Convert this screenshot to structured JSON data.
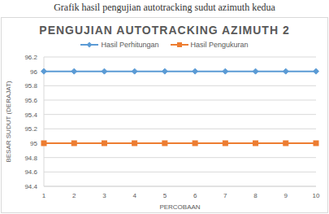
{
  "caption": "Grafik hasil pengujian autotracking sudut azimuth kedua",
  "chart_data": {
    "type": "line",
    "title": "PENGUJIAN AUTOTRACKING AZIMUTH 2",
    "xlabel": "PERCOBAAN",
    "ylabel": "BESAR SUDUT (DERAJAT)",
    "categories": [
      "1",
      "2",
      "3",
      "4",
      "5",
      "6",
      "7",
      "8",
      "9",
      "10"
    ],
    "series": [
      {
        "name": "Hasil Perhitungan",
        "color": "#5b9bd5",
        "marker": "diamond",
        "values": [
          96,
          96,
          96,
          96,
          96,
          96,
          96,
          96,
          96,
          96
        ]
      },
      {
        "name": "Hasil Pengukuran",
        "color": "#ed7d31",
        "marker": "square",
        "values": [
          95,
          95,
          95,
          95,
          95,
          95,
          95,
          95,
          95,
          95
        ]
      }
    ],
    "ylim": [
      94.4,
      96.2
    ],
    "yticks": [
      94.4,
      94.6,
      94.8,
      95,
      95.2,
      95.4,
      95.6,
      95.8,
      96,
      96.2
    ],
    "grid": true,
    "legend": "top"
  }
}
